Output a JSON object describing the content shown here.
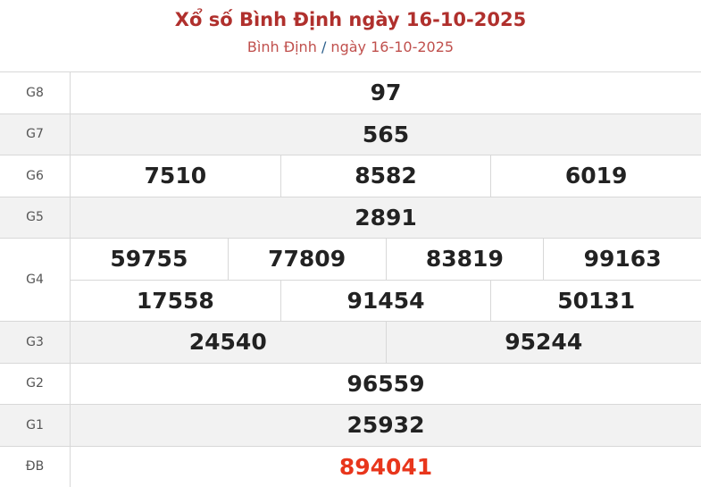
{
  "header": {
    "title": "Xổ số Bình Định ngày 16-10-2025",
    "breadcrumb": {
      "province": "Bình Định",
      "separator": "/",
      "date": "ngày 16-10-2025"
    }
  },
  "colors": {
    "title": "#b0302d",
    "special_prize": "#e8361c",
    "alt_row": "#f2f2f2"
  },
  "prizes": [
    {
      "label": "G8",
      "rows": [
        [
          "97"
        ]
      ]
    },
    {
      "label": "G7",
      "rows": [
        [
          "565"
        ]
      ]
    },
    {
      "label": "G6",
      "rows": [
        [
          "7510",
          "8582",
          "6019"
        ]
      ]
    },
    {
      "label": "G5",
      "rows": [
        [
          "2891"
        ]
      ]
    },
    {
      "label": "G4",
      "rows": [
        [
          "59755",
          "77809",
          "83819",
          "99163"
        ],
        [
          "17558",
          "91454",
          "50131"
        ]
      ]
    },
    {
      "label": "G3",
      "rows": [
        [
          "24540",
          "95244"
        ]
      ]
    },
    {
      "label": "G2",
      "rows": [
        [
          "96559"
        ]
      ]
    },
    {
      "label": "G1",
      "rows": [
        [
          "25932"
        ]
      ]
    },
    {
      "label": "ĐB",
      "rows": [
        [
          "894041"
        ]
      ],
      "special": true
    }
  ]
}
